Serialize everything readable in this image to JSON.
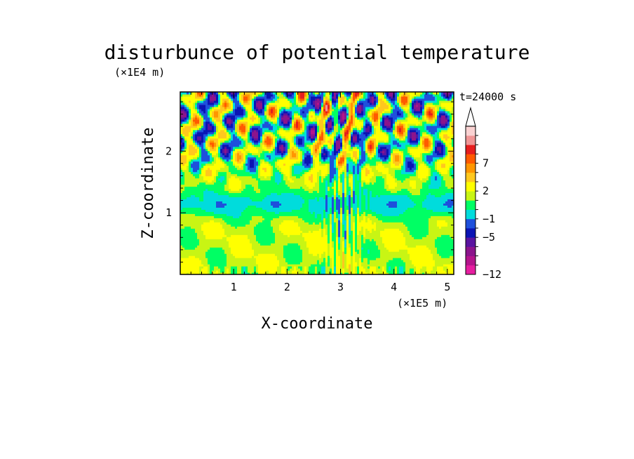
{
  "chart_data": {
    "type": "heatmap",
    "title": "disturbunce of potential temperature",
    "xlabel": "X-coordinate",
    "ylabel": "Z-coordinate",
    "x_unit": "(×1E5 m)",
    "y_unit": "(×1E4 m)",
    "time_label": "t=24000 s",
    "xlim": [
      0,
      5.12
    ],
    "ylim": [
      0,
      2.96
    ],
    "x_ticks": [
      1,
      2,
      3,
      4,
      5
    ],
    "y_ticks": [
      1,
      2
    ],
    "x_tick_labels": [
      "1",
      "2",
      "3",
      "4",
      "5"
    ],
    "y_tick_labels": [
      "1",
      "2"
    ],
    "colorbar": {
      "levels": [
        -12,
        -10,
        -8,
        -6,
        -5,
        -3,
        -1,
        0,
        1,
        2,
        4,
        6,
        7,
        9,
        11,
        13
      ],
      "tick_values": [
        -12,
        -5,
        -1,
        2,
        7
      ],
      "tick_labels": [
        "−12",
        "−5",
        "−1",
        "2",
        "7"
      ],
      "colors": [
        "#e61ea0",
        "#b4148c",
        "#8c148c",
        "#5a14a0",
        "#0a14b4",
        "#1e50dc",
        "#00dcdc",
        "#00ff64",
        "#c8f514",
        "#ffff00",
        "#ffc81e",
        "#ff9600",
        "#ff5a00",
        "#e61e1e",
        "#f09696",
        "#fad2d2"
      ],
      "extend": "max"
    },
    "regions": [
      {
        "z_range": [
          2.0,
          2.96
        ],
        "description": "strong positive/negative oscillations in wave-like bands"
      },
      {
        "z_range": [
          0.95,
          1.5
        ],
        "description": "near zero values around -1 to 1"
      },
      {
        "z_range": [
          0.0,
          0.95
        ],
        "description": "weak positive values around 1 to 4"
      }
    ]
  }
}
